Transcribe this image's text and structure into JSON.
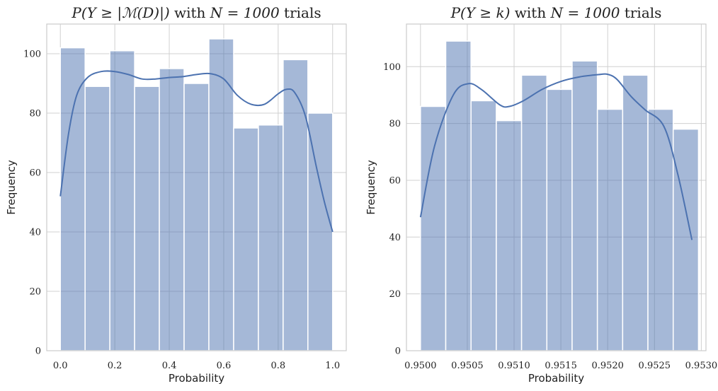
{
  "chart_data": [
    {
      "type": "bar",
      "title_parts": [
        "P(Y ≥ |ℳ(D)|)",
        " with ",
        "N = 1000",
        " trials"
      ],
      "xlabel": "Probability",
      "ylabel": "Frequency",
      "xlim": [
        -0.05,
        1.05
      ],
      "ylim": [
        0,
        110
      ],
      "grid": true,
      "bin_edges": [
        0.0,
        0.0909,
        0.1818,
        0.2727,
        0.3636,
        0.4545,
        0.5455,
        0.6364,
        0.7273,
        0.8182,
        0.9091,
        1.0
      ],
      "values": [
        102,
        89,
        101,
        89,
        95,
        90,
        105,
        75,
        76,
        98,
        80
      ],
      "xticks": [
        0.0,
        0.2,
        0.4,
        0.6,
        0.8,
        1.0
      ],
      "xtick_labels": [
        "0.0",
        "0.2",
        "0.4",
        "0.6",
        "0.8",
        "1.0"
      ],
      "yticks": [
        0,
        20,
        40,
        60,
        80,
        100
      ],
      "ytick_labels": [
        "0",
        "20",
        "40",
        "60",
        "80",
        "100"
      ],
      "kde": {
        "x": [
          0.0,
          0.03,
          0.06,
          0.1,
          0.15,
          0.2,
          0.25,
          0.3,
          0.35,
          0.4,
          0.45,
          0.5,
          0.55,
          0.6,
          0.65,
          0.7,
          0.75,
          0.8,
          0.83,
          0.86,
          0.9,
          0.94,
          0.97,
          1.0
        ],
        "y": [
          52,
          73,
          86,
          92,
          94,
          94,
          93,
          91.5,
          91.5,
          92,
          92.3,
          93,
          93.3,
          91.5,
          86,
          83,
          83,
          86.5,
          88,
          87,
          79,
          62,
          50,
          40
        ]
      }
    },
    {
      "type": "bar",
      "title_parts": [
        "P(Y ≥ k)",
        " with ",
        "N = 1000",
        " trials"
      ],
      "xlabel": "Probability",
      "ylabel": "Frequency",
      "xlim": [
        0.94985,
        0.95305
      ],
      "ylim": [
        0,
        115
      ],
      "grid": true,
      "bin_edges": [
        0.95,
        0.95027,
        0.95054,
        0.95081,
        0.95108,
        0.95135,
        0.95162,
        0.95189,
        0.95216,
        0.95243,
        0.9527,
        0.95297
      ],
      "values": [
        86,
        109,
        88,
        81,
        97,
        92,
        102,
        85,
        97,
        85,
        78
      ],
      "xticks": [
        0.95,
        0.9505,
        0.951,
        0.9515,
        0.952,
        0.9525,
        0.953
      ],
      "xtick_labels": [
        "0.9500",
        "0.9505",
        "0.9510",
        "0.9515",
        "0.9520",
        "0.9525",
        "0.9530"
      ],
      "yticks": [
        0,
        20,
        40,
        60,
        80,
        100
      ],
      "ytick_labels": [
        "0",
        "20",
        "40",
        "60",
        "80",
        "100"
      ],
      "kde": {
        "x": [
          0.95,
          0.95015,
          0.95035,
          0.95051,
          0.95065,
          0.95085,
          0.95095,
          0.9511,
          0.9513,
          0.9515,
          0.9517,
          0.9519,
          0.952,
          0.9521,
          0.95225,
          0.9524,
          0.9526,
          0.95275,
          0.9529
        ],
        "y": [
          47,
          72,
          90,
          94,
          92,
          86.5,
          86,
          88,
          92,
          94.8,
          96.4,
          97.2,
          97.3,
          95.5,
          89.5,
          84.8,
          79,
          62,
          39
        ]
      }
    }
  ]
}
